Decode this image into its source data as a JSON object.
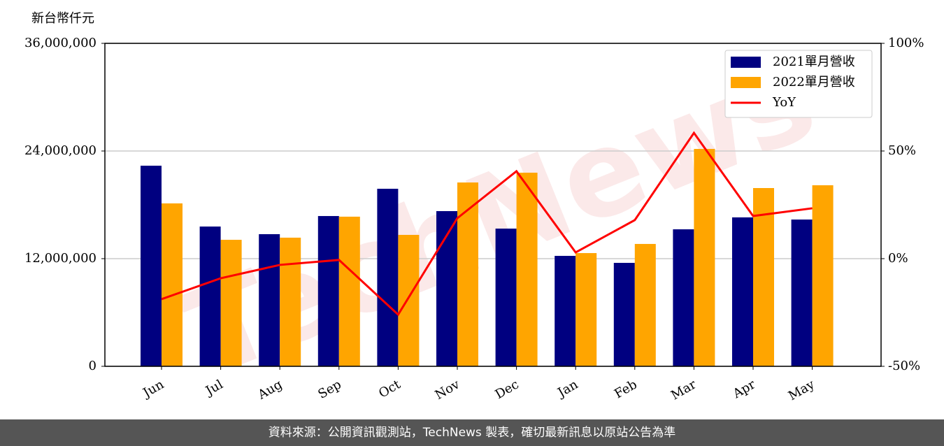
{
  "chart_data": {
    "type": "bar_line",
    "ylabel": "新台幣仟元",
    "watermark": "TechNews",
    "categories": [
      "Jun",
      "Jul",
      "Aug",
      "Sep",
      "Oct",
      "Nov",
      "Dec",
      "Jan",
      "Feb",
      "Mar",
      "Apr",
      "May"
    ],
    "series": [
      {
        "name": "2021單月營收",
        "color": "#000080",
        "values": [
          22360000,
          15580000,
          14730000,
          16750000,
          19790000,
          17300000,
          15350000,
          12310000,
          11530000,
          15270000,
          16600000,
          16360000
        ]
      },
      {
        "name": "2022單月營收",
        "color": "#ffa500",
        "values": [
          18160000,
          14100000,
          14340000,
          16680000,
          14650000,
          20490000,
          21580000,
          12620000,
          13640000,
          24230000,
          19870000,
          20180000
        ]
      },
      {
        "name": "YoY",
        "color": "#ff0000",
        "axis": "y2",
        "values": [
          -18.8,
          -9.1,
          -2.9,
          -0.6,
          -26,
          18.8,
          40.6,
          2.9,
          17.9,
          58.4,
          19.8,
          23.4
        ]
      }
    ],
    "ylim": [
      0,
      36000000
    ],
    "yticks": [
      0,
      {
        "value": 12000000,
        "label": "12,000,000"
      },
      {
        "value": 24000000,
        "label": "24,000,000"
      },
      {
        "value": 36000000,
        "label": "36,000,000"
      }
    ],
    "y2lim": [
      -50,
      100
    ],
    "y2ticks": [
      {
        "value": -50,
        "label": "-50%"
      },
      {
        "value": 0,
        "label": "0%"
      },
      {
        "value": 50,
        "label": "50%"
      },
      {
        "value": 100,
        "label": "100%"
      }
    ],
    "grid": true,
    "legend": "upper right"
  },
  "footer": "資料來源：公開資訊觀測站，TechNews 製表，確切最新訊息以原站公告為準"
}
